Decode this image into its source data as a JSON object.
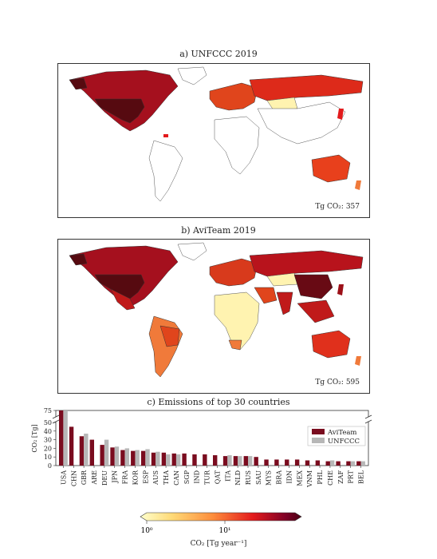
{
  "maps": [
    {
      "title": "a) UNFCCC 2019",
      "total_label": "Tg CO₂: 357"
    },
    {
      "title": "b) AviTeam 2019",
      "total_label": "Tg CO₂: 595"
    }
  ],
  "bar_title": "c) Emissions of top 30 countries",
  "colorbar": {
    "label": "CO₂ [Tg year⁻¹]",
    "ticks": [
      "10⁰",
      "10¹"
    ],
    "colors": [
      "#ffffcc",
      "#fed976",
      "#fd8d3c",
      "#e31a1c",
      "#800026",
      "#4a0014"
    ]
  },
  "chart_data": {
    "type": "bar",
    "title": "c) Emissions of top 30 countries",
    "xlabel": "",
    "ylabel": "CO₂ [Tg]",
    "ylim": [
      0,
      75
    ],
    "y_axis_break": [
      50,
      70
    ],
    "yticks": [
      0,
      10,
      20,
      30,
      40,
      50,
      75
    ],
    "legend_position": "right",
    "categories": [
      "USA",
      "CHN",
      "GBR",
      "ARE",
      "DEU",
      "JPN",
      "FRA",
      "KOR",
      "ESP",
      "AUS",
      "THA",
      "CAN",
      "SGP",
      "IND",
      "TUR",
      "QAT",
      "ITA",
      "NLD",
      "RUS",
      "SAU",
      "MYS",
      "BRA",
      "IDN",
      "MEX",
      "VNM",
      "PHL",
      "CHE",
      "ZAF",
      "PRT",
      "BEL"
    ],
    "series": [
      {
        "name": "AviTeam",
        "color": "#7a0c1f",
        "values": [
          120,
          45,
          34,
          30,
          24,
          21,
          18,
          17,
          17,
          15,
          15,
          14,
          14,
          13,
          13,
          12,
          11,
          11,
          11,
          10,
          7,
          7,
          7,
          7,
          6,
          6,
          5,
          5,
          5,
          5
        ]
      },
      {
        "name": "UNFCCC",
        "color": "#b7b7b7",
        "values": [
          95,
          null,
          37,
          null,
          30,
          22,
          20,
          18,
          19,
          16,
          13,
          13,
          null,
          null,
          null,
          null,
          12,
          11,
          11,
          null,
          null,
          null,
          null,
          null,
          null,
          null,
          6,
          null,
          5,
          5
        ]
      }
    ]
  }
}
